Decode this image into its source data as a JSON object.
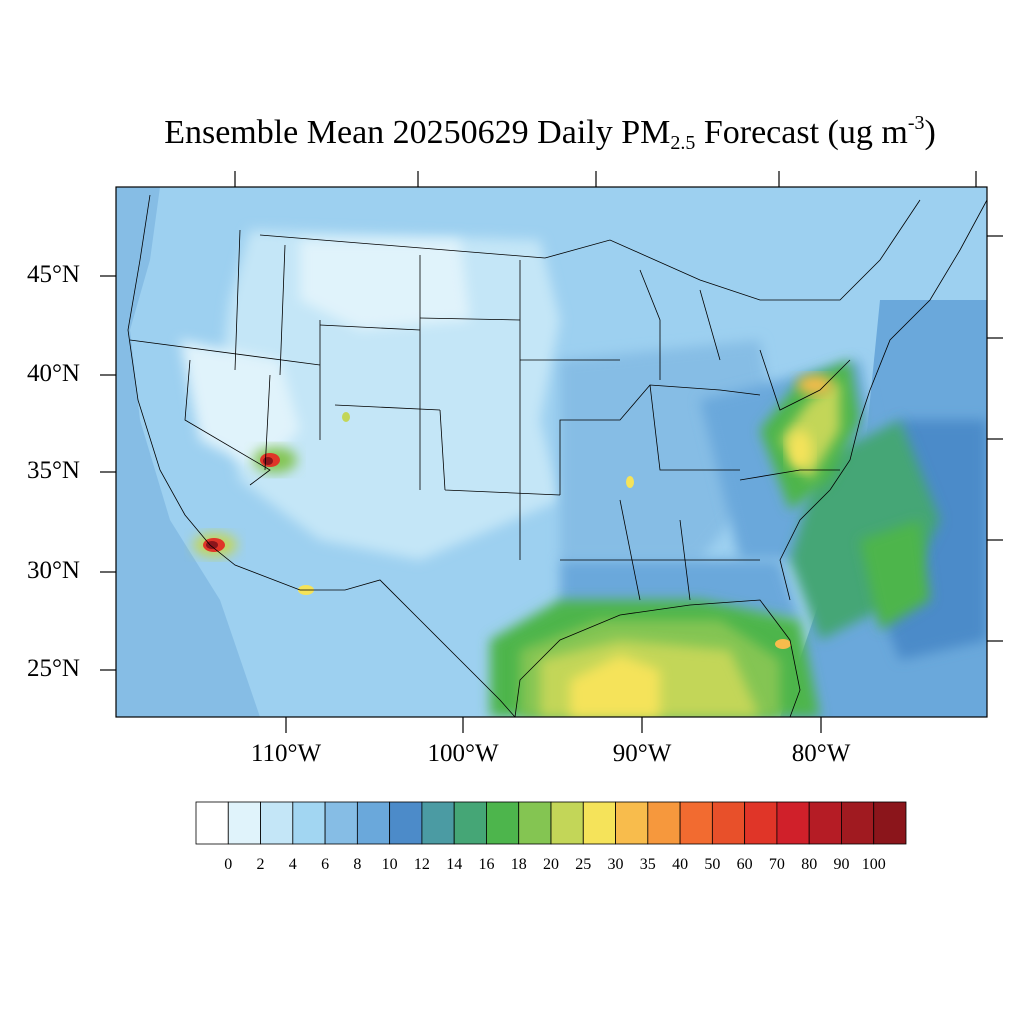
{
  "title": {
    "main": "Ensemble Mean 20250629 Daily PM",
    "sub": "2.5",
    "mid": " Forecast (ug m",
    "sup": "-3",
    "end": ")"
  },
  "map": {
    "lat_labels": [
      "45°N",
      "40°N",
      "35°N",
      "30°N",
      "25°N"
    ],
    "lon_labels": [
      "110°W",
      "100°W",
      "90°W",
      "80°W"
    ]
  },
  "colorbar": {
    "labels": [
      "0",
      "2",
      "4",
      "6",
      "8",
      "10",
      "12",
      "14",
      "16",
      "18",
      "20",
      "25",
      "30",
      "35",
      "40",
      "50",
      "60",
      "70",
      "80",
      "90",
      "100"
    ],
    "colors": [
      "#ffffff",
      "#e0f3fb",
      "#c4e6f7",
      "#a2d6f2",
      "#86bde5",
      "#6aa8db",
      "#4c8bc9",
      "#4b9ba3",
      "#45a676",
      "#4db54c",
      "#84c552",
      "#c3d658",
      "#f5e35a",
      "#f8bc4c",
      "#f6983d",
      "#f26b30",
      "#e8502a",
      "#e03528",
      "#d0202a",
      "#b51c25",
      "#a01a20",
      "#8b151b"
    ]
  }
}
